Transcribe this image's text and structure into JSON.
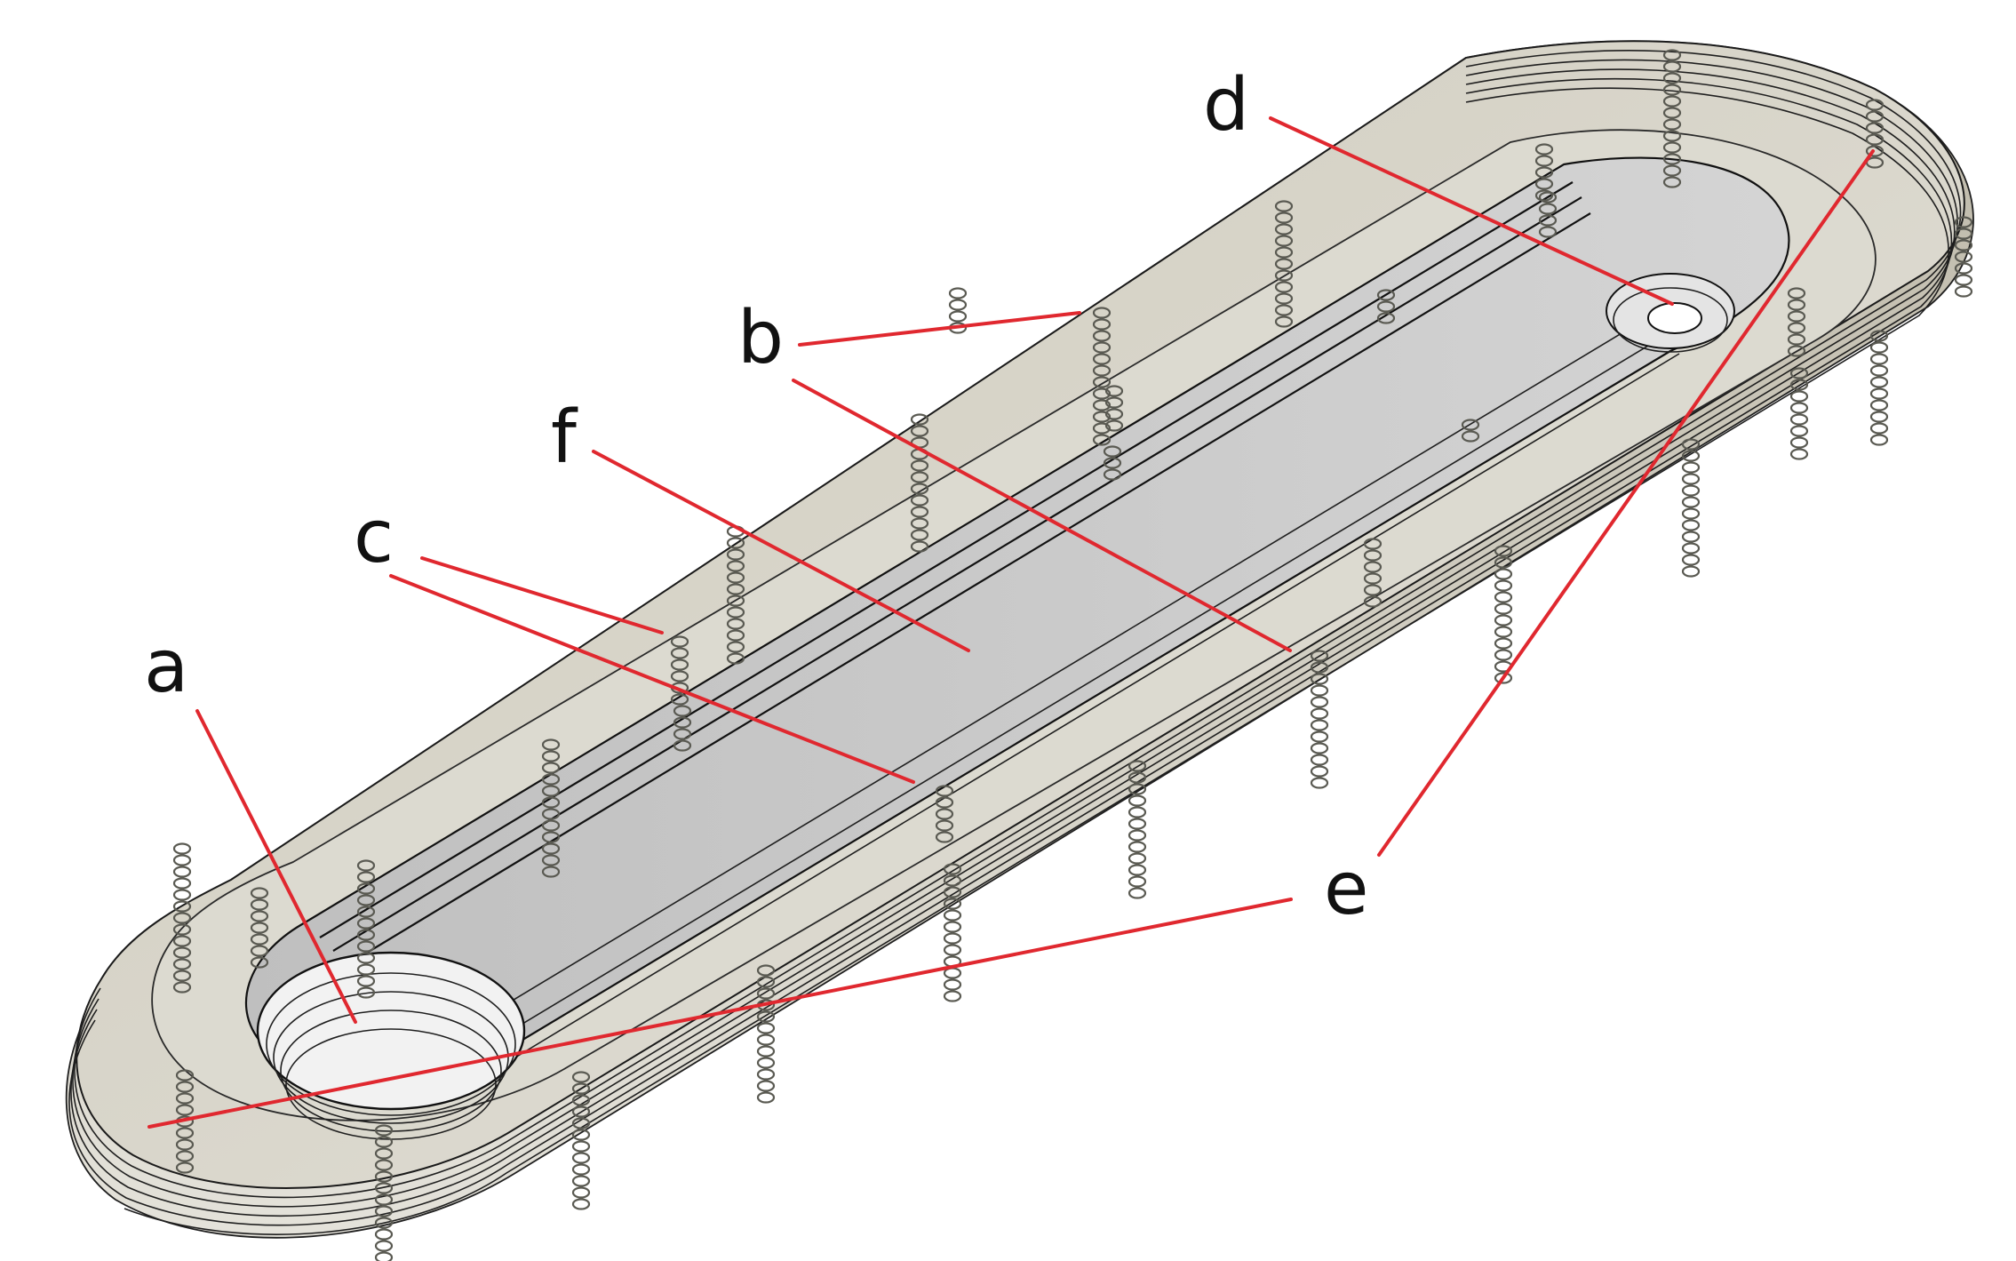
{
  "diagram": {
    "labels": [
      {
        "id": "a",
        "text": "a"
      },
      {
        "id": "b",
        "text": "b"
      },
      {
        "id": "c",
        "text": "c"
      },
      {
        "id": "d",
        "text": "d"
      },
      {
        "id": "e",
        "text": "e"
      },
      {
        "id": "f",
        "text": "f"
      }
    ],
    "colors": {
      "leader": "#e0282f",
      "label": "#111111",
      "body": "#d3d0c4",
      "channel": "#c9c9c9",
      "edge": "#1f1f1f"
    }
  }
}
